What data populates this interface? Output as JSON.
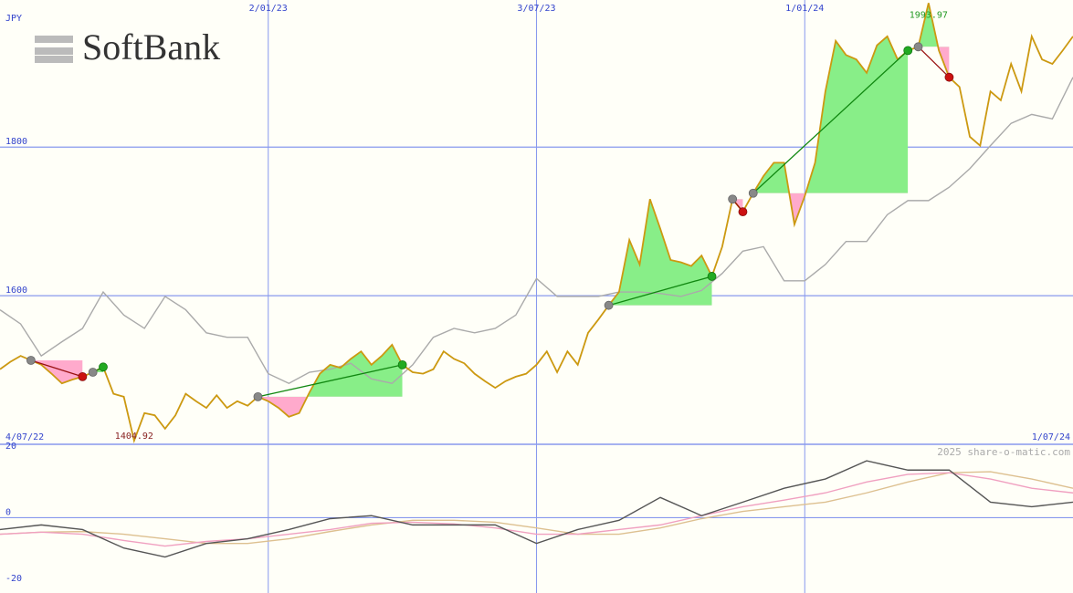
{
  "chart_data": [
    {
      "type": "line",
      "logo": "SoftBank",
      "y_label": "JPY",
      "xlim": [
        0,
        104
      ],
      "xticks": [
        {
          "value": 0,
          "label": "4/07/22"
        },
        {
          "value": 26,
          "label": "2/01/23"
        },
        {
          "value": 52,
          "label": "3/07/23"
        },
        {
          "value": 78,
          "label": "1/01/24"
        },
        {
          "value": 104,
          "label": "1/07/24"
        }
      ],
      "ylim": [
        1400,
        1998
      ],
      "yticks": [
        1600,
        1800
      ],
      "grid": true,
      "x": [
        0,
        1,
        2,
        3,
        4,
        5,
        6,
        7,
        8,
        9,
        10,
        11,
        12,
        13,
        14,
        15,
        16,
        17,
        18,
        19,
        20,
        21,
        22,
        23,
        24,
        25,
        26,
        27,
        28,
        29,
        30,
        31,
        32,
        33,
        34,
        35,
        36,
        37,
        38,
        39,
        40,
        41,
        42,
        43,
        44,
        45,
        46,
        47,
        48,
        49,
        50,
        51,
        52,
        53,
        54,
        55,
        56,
        57,
        58,
        59,
        60,
        61,
        62,
        63,
        64,
        65,
        66,
        67,
        68,
        69,
        70,
        71,
        72,
        73,
        74,
        75,
        76,
        77,
        78,
        79,
        80,
        81,
        82,
        83,
        84,
        85,
        86,
        87,
        88,
        89,
        90,
        91,
        92,
        93,
        94,
        95,
        96,
        97,
        98,
        99,
        100,
        101,
        102,
        103,
        104
      ],
      "series": [
        {
          "color": "#cc9911",
          "values": [
            1501,
            1511,
            1519,
            1513,
            1507,
            1495,
            1482,
            1487,
            1491,
            1497,
            1504,
            1468,
            1464,
            1404.92,
            1442,
            1439,
            1421,
            1439,
            1468,
            1458,
            1449,
            1466,
            1449,
            1458,
            1452,
            1464,
            1458,
            1449,
            1437,
            1442,
            1470,
            1495,
            1507,
            1503,
            1515,
            1525,
            1507,
            1519,
            1534,
            1507,
            1497,
            1495,
            1501,
            1525,
            1515,
            1509,
            1495,
            1485,
            1476,
            1485,
            1491,
            1495,
            1507,
            1525,
            1497,
            1525,
            1507,
            1550,
            1568,
            1587,
            1605,
            1675,
            1642,
            1730,
            1690,
            1648,
            1645,
            1640,
            1654,
            1626,
            1666,
            1730,
            1713,
            1738,
            1761,
            1779,
            1779,
            1696,
            1734,
            1779,
            1875,
            1943,
            1924,
            1918,
            1900,
            1937,
            1949,
            1918,
            1930,
            1935,
            1993.97,
            1930,
            1894,
            1881,
            1814,
            1802,
            1875,
            1863,
            1912,
            1875,
            1949,
            1918,
            1912,
            1930,
            1949
          ]
        },
        {
          "color": "#aaaaaa",
          "x": [
            0,
            2,
            4,
            6,
            8,
            10,
            12,
            14,
            16,
            18,
            20,
            22,
            24,
            26,
            28,
            30,
            32,
            34,
            36,
            38,
            40,
            42,
            44,
            46,
            48,
            50,
            52,
            54,
            56,
            58,
            60,
            62,
            64,
            66,
            68,
            70,
            72,
            74,
            76,
            78,
            80,
            82,
            84,
            86,
            88,
            90,
            92,
            94,
            96,
            98,
            100,
            102,
            104
          ],
          "values": [
            1581,
            1562,
            1519,
            1538,
            1556,
            1605,
            1574,
            1556,
            1599,
            1581,
            1550,
            1544,
            1544,
            1495,
            1482,
            1497,
            1501,
            1509,
            1488,
            1482,
            1507,
            1544,
            1556,
            1550,
            1556,
            1574,
            1623,
            1599,
            1599,
            1599,
            1605,
            1605,
            1603,
            1599,
            1607,
            1630,
            1660,
            1666,
            1620,
            1620,
            1642,
            1673,
            1673,
            1709,
            1728,
            1728,
            1746,
            1771,
            1802,
            1832,
            1844,
            1838,
            1894
          ]
        }
      ],
      "trades": [
        [
          3,
          8
        ],
        [
          9,
          10
        ],
        [
          25,
          39
        ],
        [
          59,
          69
        ],
        [
          71,
          72
        ],
        [
          73,
          88
        ],
        [
          89,
          92
        ]
      ],
      "gain_color": "#88ee88",
      "loss_color": "#ffaacc",
      "annotations": [
        {
          "text": "1404.92",
          "x": 13,
          "color": "#882222"
        },
        {
          "text": "1993.97",
          "x": 90,
          "color": "#229922"
        }
      ]
    },
    {
      "type": "line",
      "watermark": "2025 share-o-matic.com",
      "xlim": [
        0,
        104
      ],
      "ylim": [
        -22.8,
        22.2
      ],
      "yticks": [
        -20,
        0,
        20
      ],
      "hlines": [
        0
      ],
      "x": [
        0,
        4,
        8,
        12,
        16,
        20,
        24,
        28,
        32,
        36,
        40,
        44,
        48,
        52,
        56,
        60,
        64,
        68,
        72,
        76,
        80,
        84,
        88,
        92,
        96,
        100,
        104
      ],
      "series": [
        {
          "color": "#555555",
          "values": [
            -3.6,
            -2.2,
            -3.6,
            -9.2,
            -11.9,
            -7.8,
            -6.4,
            -3.6,
            -0.3,
            0.6,
            -2.2,
            -2.2,
            -2.2,
            -7.8,
            -3.6,
            -0.8,
            6.1,
            0.6,
            4.7,
            8.9,
            11.7,
            17.2,
            14.4,
            14.4,
            4.7,
            3.3,
            4.7
          ]
        },
        {
          "color": "#f0a0c0",
          "values": [
            -5,
            -4.4,
            -5,
            -6.9,
            -8.6,
            -7.2,
            -6.4,
            -5,
            -3.6,
            -1.7,
            -1.4,
            -1.9,
            -3.1,
            -5,
            -5,
            -3.6,
            -2.2,
            0.6,
            3.3,
            5.3,
            7.5,
            10.8,
            13.1,
            13.6,
            11.7,
            8.9,
            7.5
          ]
        },
        {
          "color": "#ddc090",
          "values": [
            -5,
            -4.4,
            -4.2,
            -5,
            -6.4,
            -7.8,
            -7.8,
            -6.4,
            -4.2,
            -2.2,
            -0.8,
            -0.8,
            -1.4,
            -3.1,
            -5,
            -5,
            -3.1,
            -0.3,
            1.9,
            3.3,
            4.7,
            7.5,
            10.8,
            13.6,
            13.9,
            11.7,
            8.9
          ]
        }
      ]
    }
  ]
}
